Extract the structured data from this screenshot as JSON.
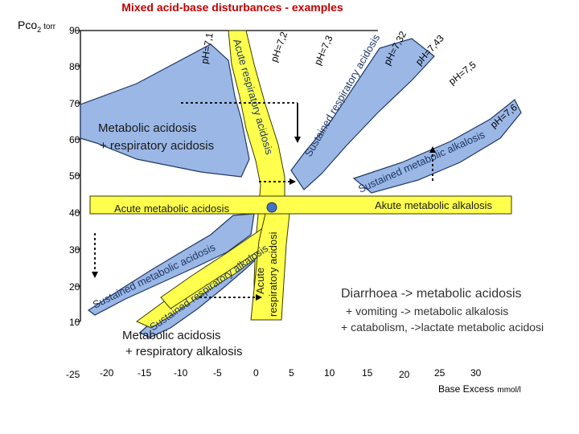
{
  "title": "Mixed acid-base disturbances - examples",
  "y_axis": {
    "label_main": "Pco",
    "label_sub": "2",
    "label_unit": "torr",
    "ticks": [
      "90",
      "80",
      "70",
      "60",
      "50",
      "40",
      "30",
      "20",
      "10"
    ]
  },
  "x_axis": {
    "ticks": [
      "-25",
      "-20",
      "-15",
      "-10",
      "-5",
      "0",
      "5",
      "10",
      "15",
      "20",
      "25",
      "30"
    ],
    "label_main": "Base Excess",
    "label_unit": "mmol/l"
  },
  "zones": {
    "acute_metabolic_acidosis": "Acute metabolic acidosis",
    "acute_metabolic_alkalosis": "Akute metabolic alkalosis",
    "acute_respiratory_acidosis_top": "Acute respiratory acidosis",
    "acute_respiratory_acidosis_lower_1": "Acute",
    "acute_respiratory_acidosis_lower_2": "respiratory acidosi",
    "sustained_respiratory_acidosis": "Sustained respiratory acidosis",
    "sustained_metabolic_alkalosis": "Sustained metabolic alkalosis",
    "sustained_metabolic_acidosis": "Sustained metabolic acidosis",
    "sustained_respiratory_alkalosis": "Sustained respiratory alkalosis",
    "metabolic_resp_acidosis_1": "Metabolic acidosis",
    "metabolic_resp_acidosis_2": "+ respiratory acidosis",
    "metabolic_resp_alkalosis_1": "Metabolic acidosis",
    "metabolic_resp_alkalosis_2": "+ respiratory alkalosis"
  },
  "ph_labels": [
    "pH=7,1",
    "pH=7,2",
    "pH=7,3",
    "pH=7,32",
    "pH=7,43",
    "pH=7,5",
    "pH=7,6"
  ],
  "notes": [
    "Diarrhoea -> metabolic acidosis",
    "+ vomiting -> metabolic alkalosis",
    "+ catabolism, ->lactate metabolic acidosi"
  ],
  "colors": {
    "title": "#c00000",
    "zone_blue": "#9ab7e6",
    "zone_yellow": "#ffff4d",
    "normal_point": "#4472c4"
  }
}
